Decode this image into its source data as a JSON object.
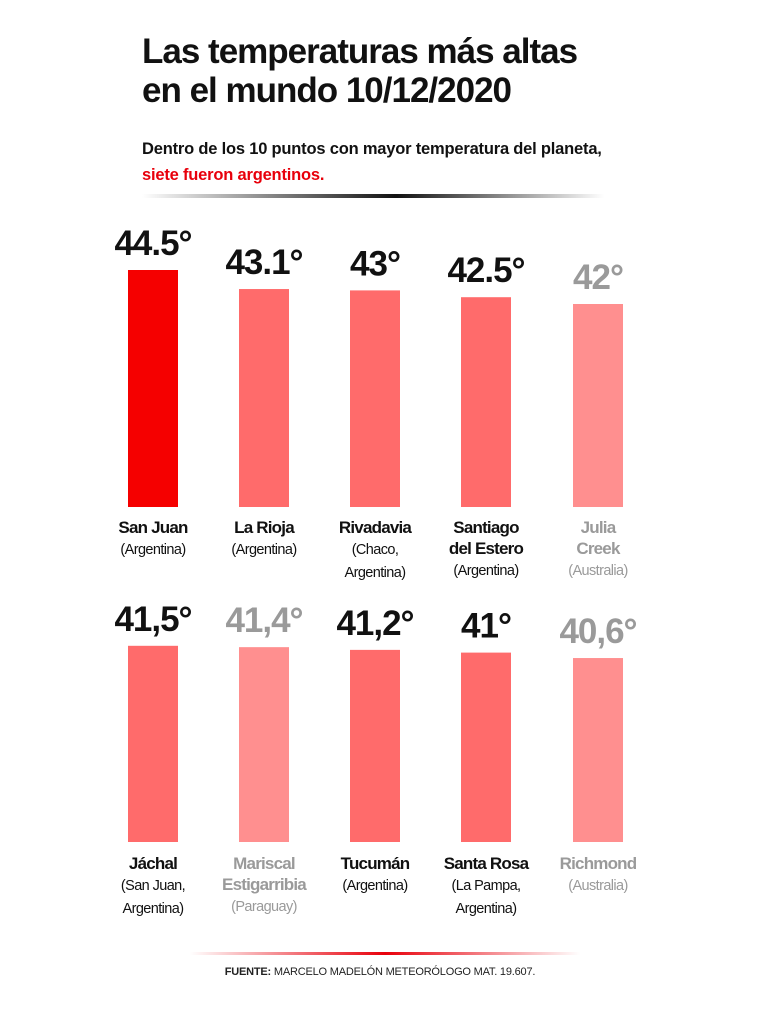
{
  "header": {
    "title_line1": "Las temperaturas más altas",
    "title_line2": "en el mundo 10/12/2020",
    "subtitle_line1": "Dentro de los 10 puntos con mayor temperatura del planeta,",
    "subtitle_line2": "siete fueron argentinos."
  },
  "footer": {
    "source_label": "FUENTE:",
    "source_text": " MARCELO MADELÓN METEORÓLOGO MAT. 19.607."
  },
  "colors": {
    "highlight": "#f50000",
    "argentina_bar": "#ff6b6b",
    "other_bar": "#ff8f8f",
    "argentina_text": "#111111",
    "other_text": "#9a9a9a"
  },
  "chart_data": {
    "type": "bar",
    "title": "Las temperaturas más altas en el mundo 10/12/2020",
    "series": [
      {
        "values": [
          44.5,
          43.1,
          43,
          42.5,
          42,
          41.5,
          41.4,
          41.2,
          41,
          40.6
        ]
      }
    ],
    "value_labels": [
      "44.5°",
      "43.1°",
      "43°",
      "42.5°",
      "42°",
      "41,5°",
      "41,4°",
      "41,2°",
      "41°",
      "40,6°"
    ],
    "items": [
      {
        "name": [
          "San Juan"
        ],
        "region": [
          "(Argentina)"
        ],
        "value": 44.5,
        "label": "44.5°",
        "country": "Argentina",
        "highlight": true
      },
      {
        "name": [
          "La Rioja"
        ],
        "region": [
          "(Argentina)"
        ],
        "value": 43.1,
        "label": "43.1°",
        "country": "Argentina"
      },
      {
        "name": [
          "Rivadavia"
        ],
        "region": [
          "(Chaco,",
          "Argentina)"
        ],
        "value": 43,
        "label": "43°",
        "country": "Argentina"
      },
      {
        "name": [
          "Santiago",
          "del Estero"
        ],
        "region": [
          "(Argentina)"
        ],
        "value": 42.5,
        "label": "42.5°",
        "country": "Argentina"
      },
      {
        "name": [
          "Julia",
          "Creek"
        ],
        "region": [
          "(Australia)"
        ],
        "value": 42,
        "label": "42°",
        "country": "Australia"
      },
      {
        "name": [
          "Jáchal"
        ],
        "region": [
          "(San Juan,",
          "Argentina)"
        ],
        "value": 41.5,
        "label": "41,5°",
        "country": "Argentina"
      },
      {
        "name": [
          "Mariscal",
          "Estigarribia"
        ],
        "region": [
          "(Paraguay)"
        ],
        "value": 41.4,
        "label": "41,4°",
        "country": "Paraguay"
      },
      {
        "name": [
          "Tucumán"
        ],
        "region": [
          "(Argentina)"
        ],
        "value": 41.2,
        "label": "41,2°",
        "country": "Argentina"
      },
      {
        "name": [
          "Santa Rosa"
        ],
        "region": [
          "(La Pampa,",
          "Argentina)"
        ],
        "value": 41,
        "label": "41°",
        "country": "Argentina"
      },
      {
        "name": [
          "Richmond"
        ],
        "region": [
          "(Australia)"
        ],
        "value": 40.6,
        "label": "40,6°",
        "country": "Australia"
      }
    ],
    "grid": false,
    "legend": "none"
  }
}
